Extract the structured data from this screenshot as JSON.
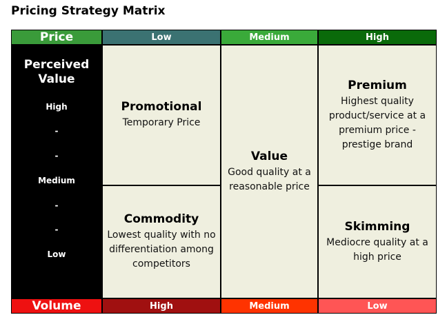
{
  "title": "Pricing Strategy Matrix",
  "colors": {
    "price_header": "#3a9b3a",
    "low_header": "#3b7272",
    "medium_header": "#3aaa3a",
    "high_header": "#0a6a0a",
    "volume_footer": "#ee1111",
    "high_footer": "#a01010",
    "medium_footer": "#ff3300",
    "low_footer": "#ff5555",
    "cell_bg": "#efefdf",
    "axis_bg": "#000000"
  },
  "header": {
    "axis_label": "Price",
    "columns": [
      "Low",
      "Medium",
      "High"
    ]
  },
  "footer": {
    "axis_label": "Volume",
    "columns": [
      "High",
      "Medium",
      "Low"
    ]
  },
  "vertical_axis": {
    "title": "Perceived Value",
    "levels": [
      "High",
      "-",
      "-",
      "Medium",
      "-",
      "-",
      "Low"
    ]
  },
  "cells": {
    "promotional": {
      "name": "Promotional",
      "desc": "Temporary Price"
    },
    "commodity": {
      "name": "Commodity",
      "desc": "Lowest quality with no differentiation among competitors"
    },
    "value": {
      "name": "Value",
      "desc": "Good quality at a reasonable price"
    },
    "premium": {
      "name": "Premium",
      "desc": "Highest quality product/service at a premium price - prestige brand"
    },
    "skimming": {
      "name": "Skimming",
      "desc": "Mediocre quality at a high price"
    }
  }
}
